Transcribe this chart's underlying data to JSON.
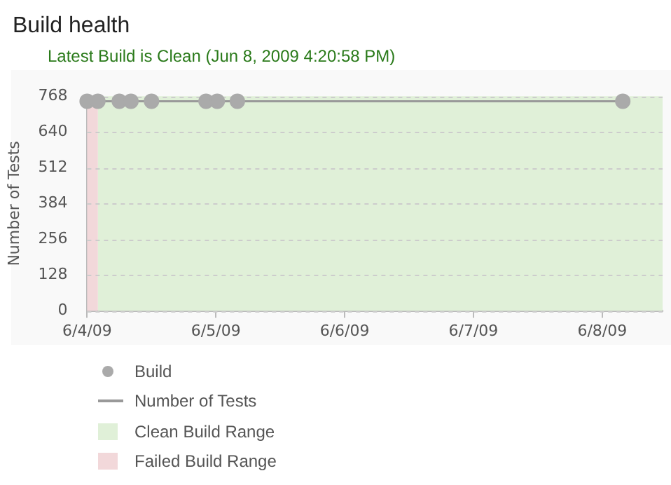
{
  "chart_data": {
    "type": "line",
    "title": "Build health",
    "subtitle": "Latest Build is Clean (Jun 8, 2009 4:20:58 PM)",
    "ylabel": "Number of Tests",
    "series": [
      {
        "name": "Build",
        "type": "scatter",
        "color": "#aaaaaa",
        "marker": "circle",
        "x": [
          "2009-06-04T00:00",
          "2009-06-04T02:00",
          "2009-06-04T06:00",
          "2009-06-04T08:10",
          "2009-06-04T12:00",
          "2009-06-04T22:10",
          "2009-06-05T00:15",
          "2009-06-05T04:00",
          "2009-06-08T03:50"
        ],
        "values": [
          750,
          750,
          750,
          750,
          750,
          750,
          750,
          750,
          750
        ]
      },
      {
        "name": "Number of Tests",
        "color": "#999999",
        "marker": "none",
        "x": [
          "2009-06-04T00:00",
          "2009-06-04T02:00",
          "2009-06-04T06:00",
          "2009-06-04T08:10",
          "2009-06-04T12:00",
          "2009-06-04T22:10",
          "2009-06-05T00:15",
          "2009-06-05T04:00",
          "2009-06-08T03:50"
        ],
        "values": [
          750,
          750,
          750,
          750,
          750,
          750,
          750,
          750,
          750
        ]
      }
    ],
    "bands": [
      {
        "axis": "x",
        "from": "2009-06-04T02:00",
        "to": "2009-06-08T11:15",
        "label": "Clean Build Range",
        "color": "#e0f0d8"
      },
      {
        "axis": "x",
        "from": "2009-06-04T00:00",
        "to": "2009-06-04T02:00",
        "label": "Failed Build Range",
        "color": "#f2d8da"
      }
    ],
    "xlim": [
      "2009-06-04T00:00",
      "2009-06-08T11:15"
    ],
    "xticks": [
      {
        "value": "2009-06-04",
        "label": "6/4/09"
      },
      {
        "value": "2009-06-05",
        "label": "6/5/09"
      },
      {
        "value": "2009-06-06",
        "label": "6/6/09"
      },
      {
        "value": "2009-06-07",
        "label": "6/7/09"
      },
      {
        "value": "2009-06-08",
        "label": "6/8/09"
      }
    ],
    "ylim": [
      0,
      768
    ],
    "yticks": [
      0,
      128,
      256,
      384,
      512,
      640,
      768
    ],
    "grid": "y",
    "legend": "bottom"
  }
}
